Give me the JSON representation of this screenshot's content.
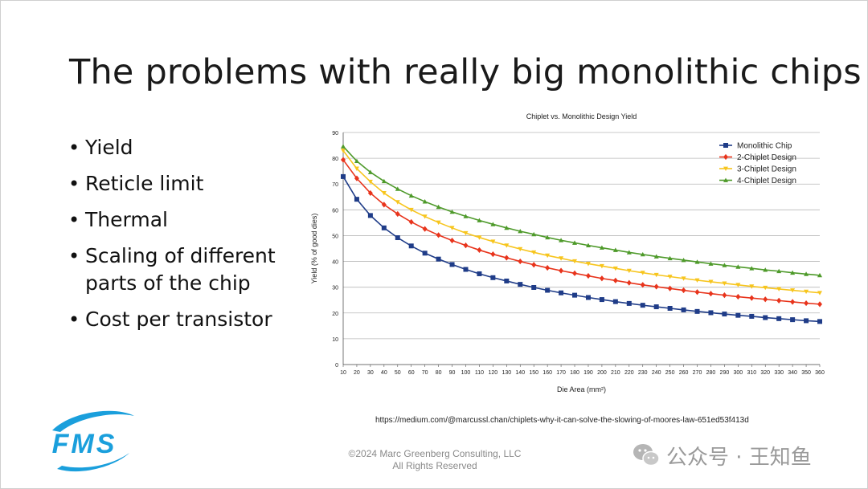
{
  "slide": {
    "title": "The problems with really big monolithic chips",
    "bullets": [
      "Yield",
      "Reticle limit",
      "Thermal",
      "Scaling of different parts of the chip",
      "Cost per transistor"
    ],
    "source_url": "https://medium.com/@marcussl.chan/chiplets-why-it-can-solve-the-slowing-of-moores-law-651ed53f413d",
    "copyright_line1": "©2024 Marc Greenberg Consulting, LLC",
    "copyright_line2": "All Rights Reserved",
    "logo_text": "FMS",
    "logo_icon": "fms-logo-swoosh",
    "watermark_text": "公众号 · 王知鱼",
    "watermark_icon": "wechat-icon"
  },
  "chart_data": {
    "type": "line",
    "title": "Chiplet vs. Monolithic Design Yield",
    "xlabel": "Die Area (mm²)",
    "ylabel": "Yield (% of good dies)",
    "xlim": [
      10,
      360
    ],
    "ylim": [
      0,
      90
    ],
    "yticks": [
      0,
      10,
      20,
      30,
      40,
      50,
      60,
      70,
      80,
      90
    ],
    "xticks": [
      10,
      20,
      30,
      40,
      50,
      60,
      70,
      80,
      90,
      100,
      110,
      120,
      130,
      140,
      150,
      160,
      170,
      180,
      190,
      200,
      210,
      220,
      230,
      240,
      250,
      260,
      270,
      280,
      290,
      300,
      310,
      320,
      330,
      340,
      350,
      360
    ],
    "grid": "horizontal",
    "legend_position": "top-right",
    "x": [
      10,
      20,
      30,
      40,
      50,
      60,
      70,
      80,
      90,
      100,
      110,
      120,
      130,
      140,
      150,
      160,
      170,
      180,
      190,
      200,
      210,
      220,
      230,
      240,
      250,
      260,
      270,
      280,
      290,
      300,
      310,
      320,
      330,
      340,
      350,
      360
    ],
    "series": [
      {
        "name": "Monolithic Chip",
        "color": "#1f3c88",
        "marker": "square",
        "values": [
          72.9,
          64.1,
          57.8,
          53.0,
          49.2,
          46.0,
          43.2,
          40.9,
          38.8,
          36.9,
          35.2,
          33.7,
          32.4,
          31.1,
          29.9,
          28.8,
          27.8,
          26.9,
          26.0,
          25.2,
          24.4,
          23.7,
          23.0,
          22.4,
          21.8,
          21.2,
          20.6,
          20.1,
          19.6,
          19.1,
          18.7,
          18.2,
          17.8,
          17.4,
          17.0,
          16.7
        ]
      },
      {
        "name": "2-Chiplet Design",
        "color": "#e8341c",
        "marker": "diamond",
        "values": [
          79.4,
          72.2,
          66.5,
          62.0,
          58.4,
          55.3,
          52.6,
          50.2,
          48.1,
          46.2,
          44.4,
          42.8,
          41.4,
          40.0,
          38.7,
          37.5,
          36.4,
          35.4,
          34.4,
          33.4,
          32.6,
          31.7,
          30.9,
          30.2,
          29.5,
          28.8,
          28.1,
          27.5,
          26.9,
          26.3,
          25.8,
          25.3,
          24.8,
          24.3,
          23.8,
          23.4
        ]
      },
      {
        "name": "3-Chiplet Design",
        "color": "#f7c51d",
        "marker": "triangle-down",
        "values": [
          83.0,
          76.0,
          70.9,
          66.5,
          63.0,
          60.0,
          57.4,
          55.1,
          53.0,
          51.0,
          49.3,
          47.7,
          46.2,
          44.8,
          43.5,
          42.3,
          41.2,
          40.1,
          39.1,
          38.2,
          37.3,
          36.4,
          35.6,
          34.8,
          34.1,
          33.4,
          32.7,
          32.1,
          31.5,
          30.9,
          30.3,
          29.8,
          29.3,
          28.8,
          28.3,
          27.8
        ]
      },
      {
        "name": "4-Chiplet Design",
        "color": "#4e9a2a",
        "marker": "triangle-up",
        "values": [
          84.6,
          78.9,
          74.6,
          71.1,
          68.1,
          65.5,
          63.2,
          61.1,
          59.2,
          57.5,
          55.9,
          54.4,
          53.0,
          51.7,
          50.5,
          49.3,
          48.2,
          47.2,
          46.2,
          45.3,
          44.4,
          43.5,
          42.7,
          41.9,
          41.2,
          40.5,
          39.8,
          39.1,
          38.5,
          37.9,
          37.3,
          36.7,
          36.2,
          35.6,
          35.1,
          34.6
        ]
      }
    ]
  }
}
